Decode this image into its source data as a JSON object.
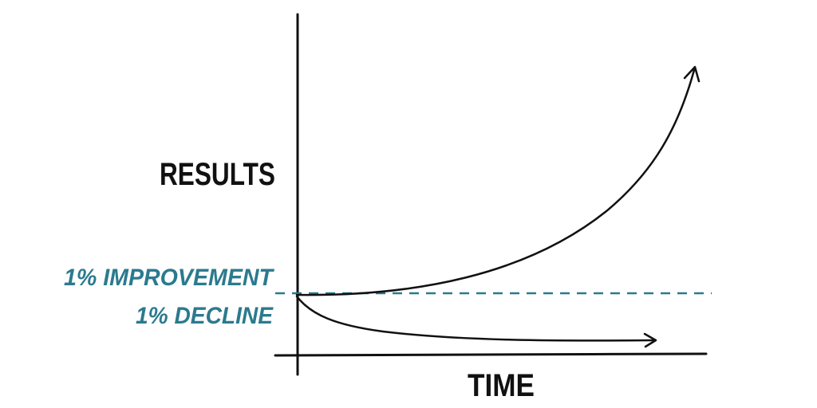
{
  "y_axis_label": "RESULTS",
  "x_axis_label": "TIME",
  "curves": [
    {
      "label": "1% IMPROVEMENT"
    },
    {
      "label": "1% DECLINE"
    }
  ]
}
